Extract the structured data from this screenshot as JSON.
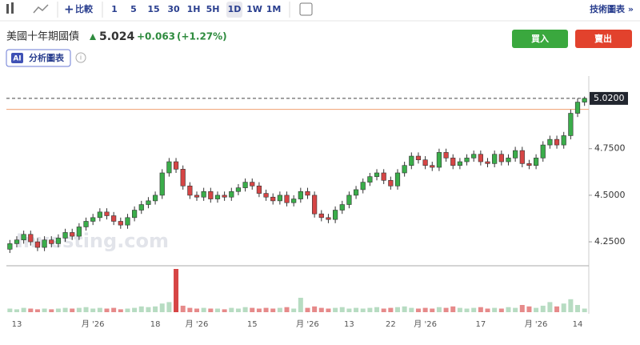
{
  "toolbar": {
    "compare": "比較",
    "intervals": [
      "1",
      "5",
      "15",
      "30",
      "1H",
      "5H",
      "1D",
      "1W",
      "1M"
    ],
    "technical": "技術圖表 »"
  },
  "header": {
    "title": "美國十年期國債",
    "price": "5.024",
    "change": "+0.063",
    "change_pct": "(+1.27%)",
    "buy": "買入",
    "sell": "賣出",
    "ai_badge": "AI",
    "analyze": "分析圖表"
  },
  "chart_data": {
    "type": "candlestick",
    "categories": [
      null,
      "13",
      null,
      null,
      null,
      null,
      null,
      null,
      null,
      null,
      null,
      null,
      "月 '26",
      null,
      null,
      null,
      null,
      null,
      null,
      null,
      null,
      "18",
      null,
      null,
      null,
      null,
      null,
      "月 '26",
      null,
      null,
      null,
      null,
      null,
      null,
      null,
      "15",
      null,
      null,
      null,
      null,
      null,
      null,
      null,
      "月 '26",
      null,
      null,
      null,
      null,
      null,
      "13",
      null,
      null,
      null,
      null,
      null,
      "22",
      null,
      null,
      null,
      null,
      "月 '26",
      null,
      null,
      null,
      null,
      null,
      null,
      null,
      "17",
      null,
      null,
      null,
      null,
      null,
      null,
      null,
      "月 '26",
      null,
      null,
      null,
      null,
      null,
      "14",
      null
    ],
    "open": [
      4.21,
      4.24,
      4.26,
      4.29,
      4.25,
      4.22,
      4.26,
      4.24,
      4.27,
      4.3,
      4.28,
      4.33,
      4.36,
      4.38,
      4.41,
      4.39,
      4.36,
      4.34,
      4.38,
      4.42,
      4.45,
      4.47,
      4.5,
      4.62,
      4.68,
      4.64,
      4.55,
      4.5,
      4.49,
      4.52,
      4.48,
      4.5,
      4.49,
      4.52,
      4.54,
      4.57,
      4.55,
      4.51,
      4.49,
      4.47,
      4.5,
      4.46,
      4.48,
      4.52,
      4.5,
      4.4,
      4.38,
      4.37,
      4.42,
      4.45,
      4.5,
      4.53,
      4.57,
      4.6,
      4.62,
      4.58,
      4.55,
      4.62,
      4.66,
      4.71,
      4.69,
      4.66,
      4.65,
      4.73,
      4.7,
      4.66,
      4.68,
      4.7,
      4.72,
      4.68,
      4.67,
      4.72,
      4.68,
      4.7,
      4.74,
      4.67,
      4.66,
      4.7,
      4.77,
      4.8,
      4.77,
      4.82,
      4.94,
      5.0
    ],
    "high": [
      4.26,
      4.28,
      4.31,
      4.31,
      4.27,
      4.28,
      4.28,
      4.29,
      4.32,
      4.32,
      4.35,
      4.38,
      4.4,
      4.43,
      4.43,
      4.41,
      4.38,
      4.4,
      4.44,
      4.47,
      4.49,
      4.52,
      4.64,
      4.7,
      4.7,
      4.66,
      4.57,
      4.52,
      4.54,
      4.54,
      4.52,
      4.52,
      4.54,
      4.56,
      4.59,
      4.59,
      4.57,
      4.53,
      4.51,
      4.52,
      4.52,
      4.5,
      4.54,
      4.54,
      4.52,
      4.42,
      4.4,
      4.44,
      4.47,
      4.52,
      4.55,
      4.59,
      4.62,
      4.64,
      4.64,
      4.6,
      4.64,
      4.68,
      4.73,
      4.73,
      4.71,
      4.68,
      4.75,
      4.75,
      4.72,
      4.7,
      4.72,
      4.74,
      4.74,
      4.7,
      4.74,
      4.74,
      4.72,
      4.76,
      4.76,
      4.69,
      4.72,
      4.79,
      4.82,
      4.82,
      4.84,
      4.96,
      5.02,
      5.03
    ],
    "low": [
      4.19,
      4.22,
      4.24,
      4.23,
      4.2,
      4.2,
      4.22,
      4.22,
      4.25,
      4.26,
      4.26,
      4.31,
      4.34,
      4.36,
      4.37,
      4.34,
      4.32,
      4.32,
      4.36,
      4.4,
      4.43,
      4.45,
      4.48,
      4.6,
      4.62,
      4.53,
      4.48,
      4.47,
      4.47,
      4.46,
      4.46,
      4.47,
      4.47,
      4.5,
      4.52,
      4.53,
      4.49,
      4.47,
      4.45,
      4.45,
      4.44,
      4.44,
      4.46,
      4.48,
      4.38,
      4.36,
      4.35,
      4.35,
      4.4,
      4.43,
      4.48,
      4.51,
      4.55,
      4.58,
      4.56,
      4.53,
      4.53,
      4.6,
      4.64,
      4.67,
      4.64,
      4.63,
      4.63,
      4.68,
      4.64,
      4.64,
      4.66,
      4.68,
      4.66,
      4.65,
      4.65,
      4.66,
      4.66,
      4.68,
      4.65,
      4.64,
      4.64,
      4.68,
      4.75,
      4.75,
      4.75,
      4.8,
      4.92,
      4.98
    ],
    "close": [
      4.24,
      4.26,
      4.29,
      4.25,
      4.22,
      4.26,
      4.24,
      4.27,
      4.3,
      4.28,
      4.33,
      4.36,
      4.38,
      4.41,
      4.39,
      4.36,
      4.34,
      4.38,
      4.42,
      4.45,
      4.47,
      4.5,
      4.62,
      4.68,
      4.64,
      4.55,
      4.5,
      4.49,
      4.52,
      4.48,
      4.5,
      4.49,
      4.52,
      4.54,
      4.57,
      4.55,
      4.51,
      4.49,
      4.47,
      4.5,
      4.46,
      4.48,
      4.52,
      4.5,
      4.4,
      4.38,
      4.37,
      4.42,
      4.45,
      4.5,
      4.53,
      4.57,
      4.6,
      4.62,
      4.58,
      4.55,
      4.62,
      4.66,
      4.71,
      4.69,
      4.66,
      4.65,
      4.73,
      4.7,
      4.66,
      4.68,
      4.7,
      4.72,
      4.68,
      4.67,
      4.72,
      4.68,
      4.7,
      4.74,
      4.67,
      4.66,
      4.7,
      4.77,
      4.8,
      4.77,
      4.82,
      4.94,
      5.0,
      5.02
    ],
    "volume": [
      5,
      4,
      6,
      5,
      4,
      5,
      4,
      5,
      6,
      5,
      6,
      7,
      5,
      6,
      5,
      6,
      4,
      5,
      6,
      8,
      7,
      8,
      12,
      14,
      60,
      9,
      6,
      5,
      6,
      5,
      5,
      4,
      6,
      5,
      7,
      6,
      5,
      6,
      5,
      6,
      7,
      5,
      20,
      6,
      8,
      6,
      5,
      6,
      7,
      5,
      6,
      5,
      6,
      7,
      5,
      6,
      7,
      8,
      6,
      5,
      6,
      5,
      7,
      6,
      8,
      6,
      5,
      6,
      7,
      5,
      6,
      5,
      7,
      6,
      10,
      8,
      6,
      9,
      14,
      8,
      12,
      18,
      10,
      5
    ],
    "up_color": "#3aad4a",
    "down_color": "#d64545",
    "up_volume_color": "#b7dcc2",
    "down_volume_color": "#e68a8a",
    "ylim": [
      4.13,
      5.14
    ],
    "yticks": [
      {
        "value": 4.25,
        "label": "4.2500"
      },
      {
        "value": 4.5,
        "label": "4.5000"
      },
      {
        "value": 4.75,
        "label": "4.7500"
      }
    ],
    "last_price": {
      "value": 5.02,
      "label": "5.0200"
    },
    "prev_close": 4.961,
    "watermark": "Investing.com"
  }
}
